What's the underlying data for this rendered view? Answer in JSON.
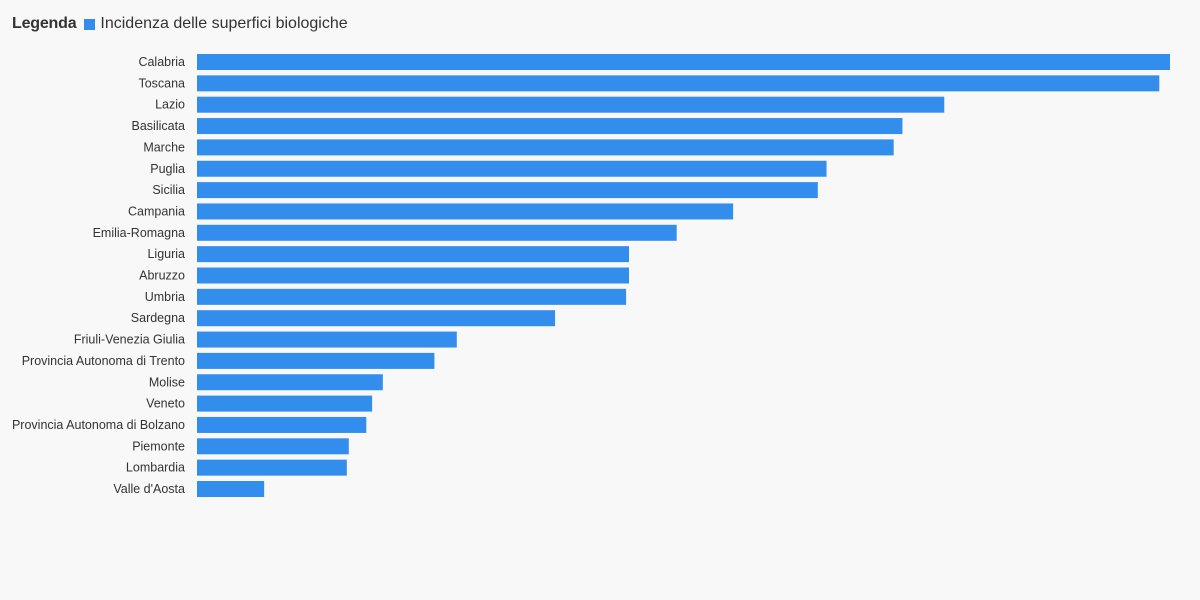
{
  "legend": {
    "title": "Legenda",
    "series_label": "Incidenza delle superfici biologiche"
  },
  "colors": {
    "bar": "#338ded",
    "background": "#f8f8f8",
    "text": "#333333"
  },
  "chart_data": {
    "type": "bar",
    "orientation": "horizontal",
    "categories": [
      "Calabria",
      "Toscana",
      "Lazio",
      "Basilicata",
      "Marche",
      "Puglia",
      "Sicilia",
      "Campania",
      "Emilia-Romagna",
      "Liguria",
      "Abruzzo",
      "Umbria",
      "Sardegna",
      "Friuli-Venezia Giulia",
      "Provincia Autonoma di Trento",
      "Molise",
      "Veneto",
      "Provincia Autonoma di Bolzano",
      "Piemonte",
      "Lombardia",
      "Valle d'Aosta"
    ],
    "series": [
      {
        "name": "Incidenza delle superfici biologiche",
        "values": [
          100,
          98.9,
          76.8,
          72.5,
          71.6,
          64.7,
          63.8,
          55.1,
          49.3,
          44.4,
          44.4,
          44.1,
          36.8,
          26.7,
          24.4,
          19.1,
          18.0,
          17.4,
          15.6,
          15.4,
          6.9
        ]
      }
    ],
    "title": "",
    "xlabel": "",
    "ylabel": "",
    "xlim": [
      0,
      100
    ],
    "grid": false,
    "legend_position": "top-left"
  }
}
